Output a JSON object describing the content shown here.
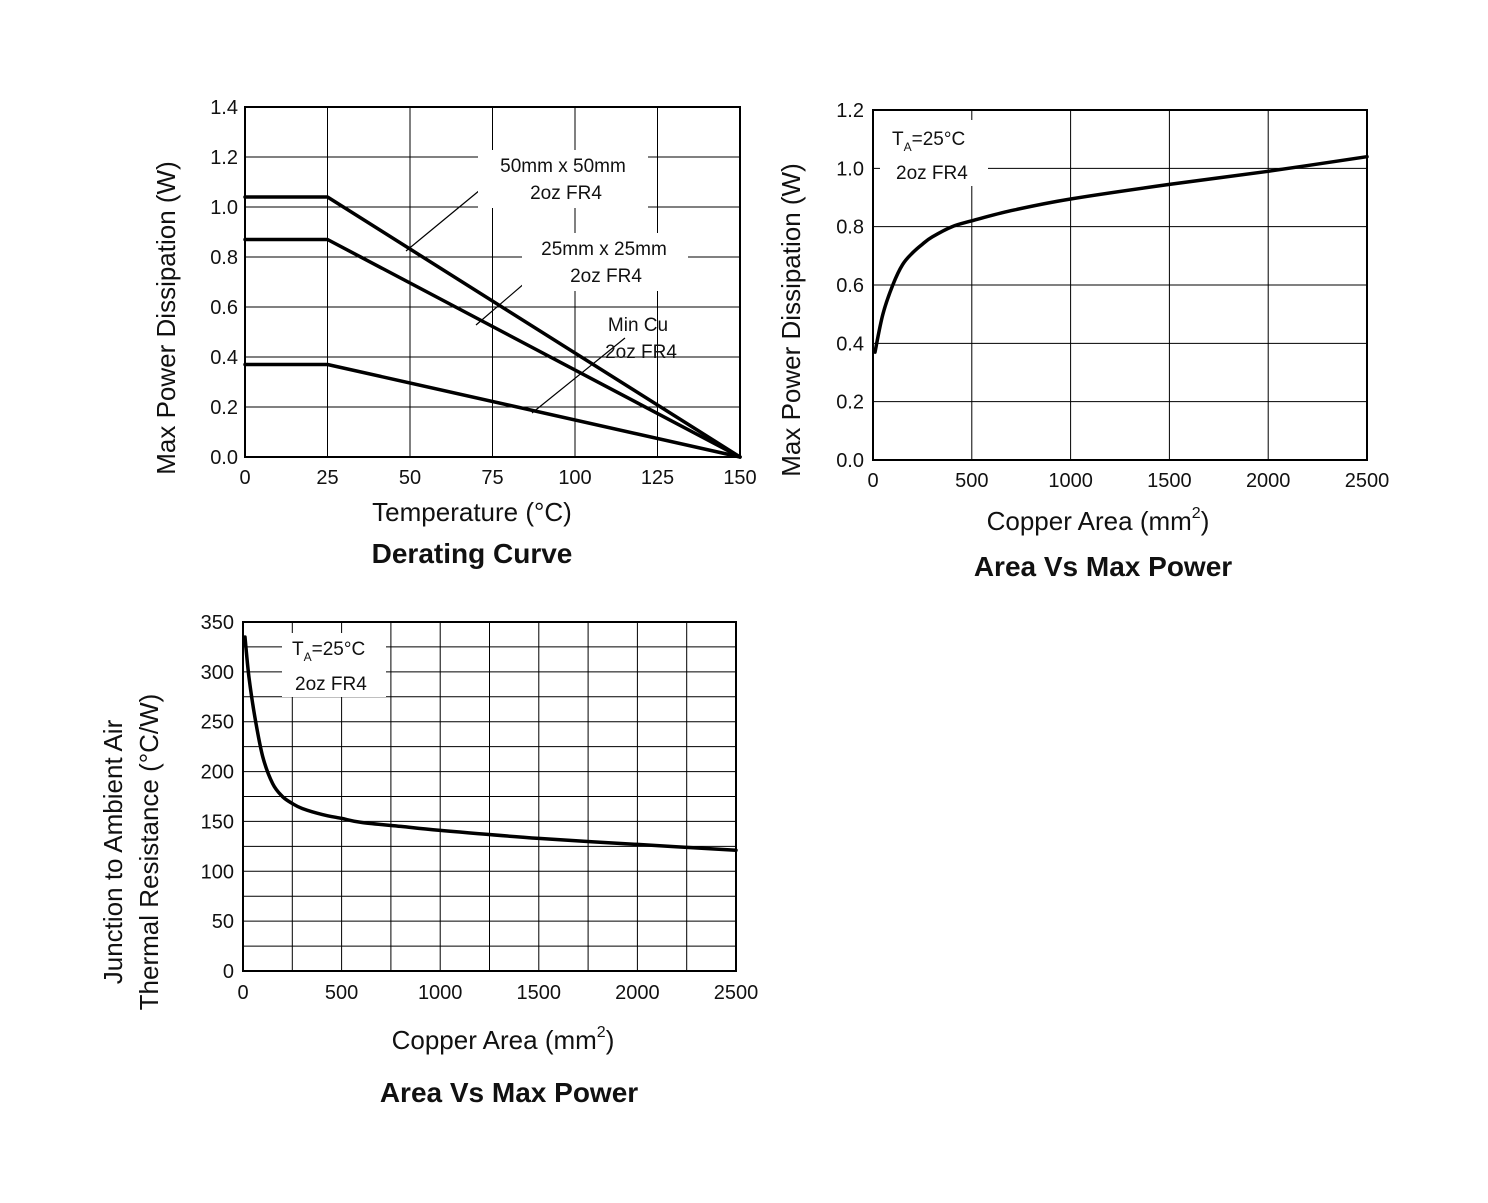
{
  "chart_data": [
    {
      "type": "line",
      "title": "Derating Curve",
      "xlabel": "Temperature (°C)",
      "ylabel": "Max Power Dissipation (W)",
      "xlim": [
        0,
        150
      ],
      "ylim": [
        0.0,
        1.4
      ],
      "x_ticks": [
        0,
        25,
        50,
        75,
        100,
        125,
        150
      ],
      "y_ticks": [
        0.0,
        0.2,
        0.4,
        0.6,
        0.8,
        1.0,
        1.2,
        1.4
      ],
      "x_tick_labels": [
        "0",
        "25",
        "50",
        "75",
        "100",
        "125",
        "150"
      ],
      "y_tick_labels": [
        "0.0",
        "0.2",
        "0.4",
        "0.6",
        "0.8",
        "1.0",
        "1.2",
        "1.4"
      ],
      "grid": true,
      "series": [
        {
          "name": "50mm x 50mm 2oz FR4",
          "x": [
            0,
            25,
            150
          ],
          "y": [
            1.04,
            1.04,
            0.0
          ]
        },
        {
          "name": "25mm x 25mm 2oz FR4",
          "x": [
            0,
            25,
            150
          ],
          "y": [
            0.87,
            0.87,
            0.0
          ]
        },
        {
          "name": "Min Cu 2oz FR4",
          "x": [
            0,
            25,
            150
          ],
          "y": [
            0.37,
            0.37,
            0.0
          ]
        }
      ],
      "annotations": [
        {
          "lines": [
            "50mm x 50mm",
            "2oz FR4"
          ],
          "series": 0
        },
        {
          "lines": [
            "25mm x 25mm",
            "2oz FR4"
          ],
          "series": 1
        },
        {
          "lines": [
            "Min Cu",
            "2oz FR4"
          ],
          "series": 2
        }
      ]
    },
    {
      "type": "line",
      "title": "Area Vs Max Power",
      "xlabel": "Copper Area (mm",
      "xlabel_sup": "2",
      "xlabel_end": ")",
      "ylabel": "Max Power Dissipation (W)",
      "xlim": [
        0,
        2500
      ],
      "ylim": [
        0.0,
        1.2
      ],
      "x_ticks": [
        0,
        500,
        1000,
        1500,
        2000,
        2500
      ],
      "y_ticks": [
        0.0,
        0.2,
        0.4,
        0.6,
        0.8,
        1.0,
        1.2
      ],
      "x_tick_labels": [
        "0",
        "500",
        "1000",
        "1500",
        "2000",
        "2500"
      ],
      "y_tick_labels": [
        "0.0",
        "0.2",
        "0.4",
        "0.6",
        "0.8",
        "1.0",
        "1.2"
      ],
      "grid": true,
      "series": [
        {
          "name": "Max Power",
          "x": [
            10,
            50,
            100,
            150,
            200,
            250,
            300,
            400,
            500,
            700,
            1000,
            1500,
            2000,
            2500
          ],
          "y": [
            0.37,
            0.5,
            0.6,
            0.67,
            0.71,
            0.74,
            0.765,
            0.8,
            0.82,
            0.855,
            0.895,
            0.945,
            0.99,
            1.04
          ]
        }
      ],
      "note": {
        "t_main": "T",
        "t_sub": "A",
        "t_rest": "=25°C",
        "line2": "2oz FR4"
      }
    },
    {
      "type": "line",
      "title": "Area Vs Max Power",
      "xlabel": "Copper Area (mm",
      "xlabel_sup": "2",
      "xlabel_end": ")",
      "ylabel_line1": "Junction to Ambient Air",
      "ylabel_line2": "Thermal Resistance (°C/W)",
      "xlim": [
        0,
        2500
      ],
      "ylim": [
        0,
        350
      ],
      "x_ticks": [
        0,
        500,
        1000,
        1500,
        2000,
        2500
      ],
      "y_ticks": [
        0,
        50,
        100,
        150,
        200,
        250,
        300,
        350
      ],
      "x_tick_labels": [
        "0",
        "500",
        "1000",
        "1500",
        "2000",
        "2500"
      ],
      "y_tick_labels": [
        "0",
        "50",
        "100",
        "150",
        "200",
        "250",
        "300",
        "350"
      ],
      "x_grid_step": 250,
      "y_grid_step": 25,
      "grid": true,
      "series": [
        {
          "name": "Thermal Resistance",
          "x": [
            10,
            30,
            60,
            100,
            150,
            200,
            250,
            300,
            400,
            500,
            600,
            800,
            1000,
            1500,
            2000,
            2500
          ],
          "y": [
            335,
            295,
            255,
            215,
            188,
            175,
            168,
            163,
            157,
            153,
            149,
            145,
            141,
            133,
            127,
            121
          ]
        }
      ],
      "note": {
        "t_main": "T",
        "t_sub": "A",
        "t_rest": "=25°C",
        "line2": "2oz FR4"
      }
    }
  ]
}
